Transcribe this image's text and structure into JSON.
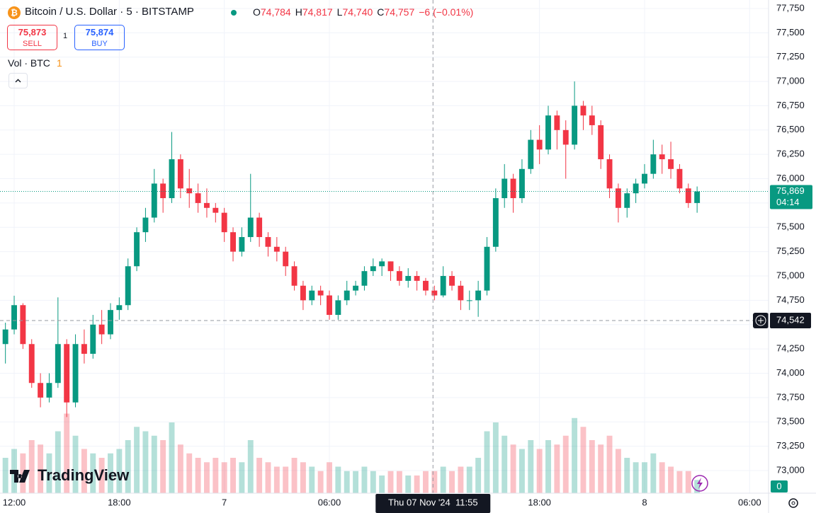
{
  "header": {
    "symbol": "Bitcoin / U.S. Dollar · 5 · BITSTAMP",
    "ohlc": [
      {
        "label": "O",
        "value": "74,784"
      },
      {
        "label": "H",
        "value": "74,817"
      },
      {
        "label": "L",
        "value": "74,740"
      },
      {
        "label": "C",
        "value": "74,757"
      }
    ],
    "change": "−6 (−0.01%)",
    "sell": {
      "price": "75,873",
      "label": "SELL"
    },
    "spread": "1",
    "buy": {
      "price": "75,874",
      "label": "BUY"
    },
    "volume_title": "Vol · BTC",
    "volume_value": "1"
  },
  "logo": "TradingView",
  "chart_data": {
    "type": "candlestick",
    "x": [
      11.5,
      12,
      12.5,
      13,
      13.5,
      14,
      14.5,
      15,
      15.5,
      16,
      16.5,
      17,
      17.5,
      18,
      18.5,
      19,
      19.5,
      20,
      20.5,
      21,
      21.5,
      22,
      22.5,
      23,
      23.5,
      24,
      24.5,
      25,
      25.5,
      26,
      26.5,
      27,
      27.5,
      28,
      28.5,
      29,
      29.5,
      30,
      30.5,
      31,
      31.5,
      32,
      32.5,
      33,
      33.5,
      34,
      34.5,
      35,
      35.5,
      36,
      36.5,
      37,
      37.5,
      38,
      38.5,
      39,
      39.5,
      40,
      40.5,
      41,
      41.5,
      42,
      42.5,
      43,
      43.5,
      44,
      44.5,
      45,
      45.5,
      46,
      46.5,
      47,
      47.5,
      48,
      48.5,
      49,
      49.5,
      50,
      50.5,
      51
    ],
    "open": [
      74300,
      74450,
      74700,
      74300,
      73900,
      73750,
      73900,
      74300,
      73700,
      74300,
      74200,
      74500,
      74400,
      74650,
      74700,
      75100,
      75450,
      75600,
      75950,
      75800,
      76200,
      75900,
      75850,
      75750,
      75700,
      75650,
      75450,
      75250,
      75400,
      75600,
      75400,
      75300,
      75250,
      75100,
      74900,
      74750,
      74850,
      74800,
      74600,
      74750,
      74850,
      74900,
      75050,
      75100,
      75150,
      75050,
      74950,
      75000,
      74950,
      74850,
      74800,
      75000,
      74900,
      74750,
      74750,
      74850,
      75300,
      75800,
      76000,
      75800,
      76100,
      76400,
      76300,
      76650,
      76500,
      76350,
      76750,
      76650,
      76550,
      76200,
      75900,
      75700,
      75850,
      75950,
      76050,
      76250,
      76200,
      76100,
      75900,
      75750
    ],
    "high": [
      74520,
      74797,
      74720,
      74350,
      74000,
      74000,
      74780,
      74350,
      74400,
      74450,
      74600,
      74650,
      74720,
      74780,
      75180,
      75500,
      75700,
      76100,
      76000,
      76480,
      76250,
      76100,
      75950,
      75900,
      75750,
      75700,
      75500,
      75500,
      76050,
      75650,
      75450,
      75400,
      75300,
      75150,
      74950,
      74900,
      74900,
      74850,
      74800,
      74950,
      74950,
      75100,
      75180,
      75180,
      75150,
      75100,
      75080,
      75050,
      74980,
      74900,
      75100,
      75050,
      74950,
      74850,
      74950,
      75400,
      75900,
      76150,
      76050,
      76200,
      76500,
      76550,
      76750,
      76700,
      76600,
      77000,
      76800,
      76750,
      76600,
      76250,
      75950,
      75900,
      76000,
      76150,
      76400,
      76350,
      76380,
      76150,
      75950,
      75920
    ],
    "low": [
      74100,
      74400,
      74250,
      73850,
      73650,
      73700,
      73850,
      73550,
      73650,
      74100,
      74150,
      74300,
      74350,
      74550,
      74650,
      75050,
      75350,
      75550,
      75650,
      75750,
      75800,
      75700,
      75650,
      75600,
      75550,
      75350,
      75150,
      75200,
      75350,
      75300,
      75200,
      75150,
      75000,
      74850,
      74650,
      74700,
      74700,
      74550,
      74550,
      74700,
      74800,
      74850,
      75000,
      75000,
      74950,
      74900,
      74880,
      74850,
      74800,
      74750,
      74780,
      74850,
      74650,
      74650,
      74580,
      74800,
      75250,
      75700,
      75650,
      75750,
      76050,
      76150,
      76250,
      76300,
      76000,
      76300,
      76500,
      76450,
      76100,
      75800,
      75550,
      75600,
      75750,
      75900,
      76000,
      76050,
      76000,
      75850,
      75700,
      75650
    ],
    "close": [
      74450,
      74700,
      74300,
      73900,
      73750,
      73900,
      74300,
      73700,
      74300,
      74200,
      74500,
      74400,
      74650,
      74700,
      75100,
      75450,
      75600,
      75950,
      75800,
      76200,
      75900,
      75850,
      75750,
      75700,
      75650,
      75450,
      75250,
      75400,
      75600,
      75400,
      75300,
      75250,
      75100,
      74900,
      74750,
      74850,
      74800,
      74600,
      74750,
      74850,
      74900,
      75050,
      75100,
      75150,
      75050,
      74950,
      75000,
      74950,
      74850,
      74800,
      75000,
      74900,
      74750,
      74750,
      74850,
      75300,
      75800,
      76000,
      75800,
      76100,
      76400,
      76300,
      76650,
      76500,
      76350,
      76750,
      76650,
      76550,
      76200,
      75900,
      75700,
      75850,
      75950,
      76050,
      76250,
      76200,
      76100,
      75900,
      75750,
      75869
    ],
    "volume": [
      8,
      10,
      9,
      12,
      11,
      9,
      14,
      18,
      13,
      10,
      9,
      8,
      9,
      10,
      12,
      15,
      14,
      13,
      12,
      16,
      11,
      9,
      8,
      7,
      8,
      7,
      8,
      7,
      12,
      8,
      7,
      6,
      6,
      8,
      7,
      6,
      5,
      7,
      6,
      5,
      5,
      6,
      5,
      4,
      5,
      5,
      4,
      4,
      5,
      5,
      6,
      5,
      6,
      6,
      8,
      14,
      16,
      13,
      11,
      10,
      12,
      10,
      12,
      11,
      13,
      17,
      15,
      12,
      11,
      13,
      10,
      8,
      7,
      7,
      9,
      7,
      6,
      5,
      5,
      3
    ],
    "up_color": "#089981",
    "down_color": "#f23645",
    "grid": true,
    "xlim": [
      11.19,
      55.08
    ],
    "ylim": [
      72767,
      77837
    ],
    "vlim": [
      0,
      24
    ],
    "vticks": [
      0
    ],
    "xticks": [
      {
        "value": 12,
        "label": "12:00"
      },
      {
        "value": 18,
        "label": "18:00"
      },
      {
        "value": 24,
        "label": "7"
      },
      {
        "value": 30,
        "label": "06:00"
      },
      {
        "value": 42,
        "label": "18:00"
      },
      {
        "value": 48,
        "label": "8"
      },
      {
        "value": 54,
        "label": "06:00"
      }
    ],
    "yticks": [
      {
        "value": 73000,
        "label": "73,000"
      },
      {
        "value": 73250,
        "label": "73,250"
      },
      {
        "value": 73500,
        "label": "73,500"
      },
      {
        "value": 73750,
        "label": "73,750"
      },
      {
        "value": 74000,
        "label": "74,000"
      },
      {
        "value": 74250,
        "label": "74,250"
      },
      {
        "value": 74500,
        "label": "74,500"
      },
      {
        "value": 74750,
        "label": "74,750"
      },
      {
        "value": 75000,
        "label": "75,000"
      },
      {
        "value": 75250,
        "label": "75,250"
      },
      {
        "value": 75500,
        "label": "75,500"
      },
      {
        "value": 75750,
        "label": "75,750"
      },
      {
        "value": 76000,
        "label": "76,000"
      },
      {
        "value": 76250,
        "label": "76,250"
      },
      {
        "value": 76500,
        "label": "76,500"
      },
      {
        "value": 76750,
        "label": "76,750"
      },
      {
        "value": 77000,
        "label": "77,000"
      },
      {
        "value": 77250,
        "label": "77,250"
      },
      {
        "value": 77500,
        "label": "77,500"
      },
      {
        "value": 77750,
        "label": "77,750"
      }
    ],
    "last_price": {
      "value": 75869,
      "label": "75,869"
    },
    "countdown": "04:14",
    "crosshair": {
      "x": {
        "value": 35.917,
        "label": "Thu 07 Nov '24  11:55"
      },
      "y": {
        "value": 74542,
        "label": "74,542"
      }
    }
  }
}
